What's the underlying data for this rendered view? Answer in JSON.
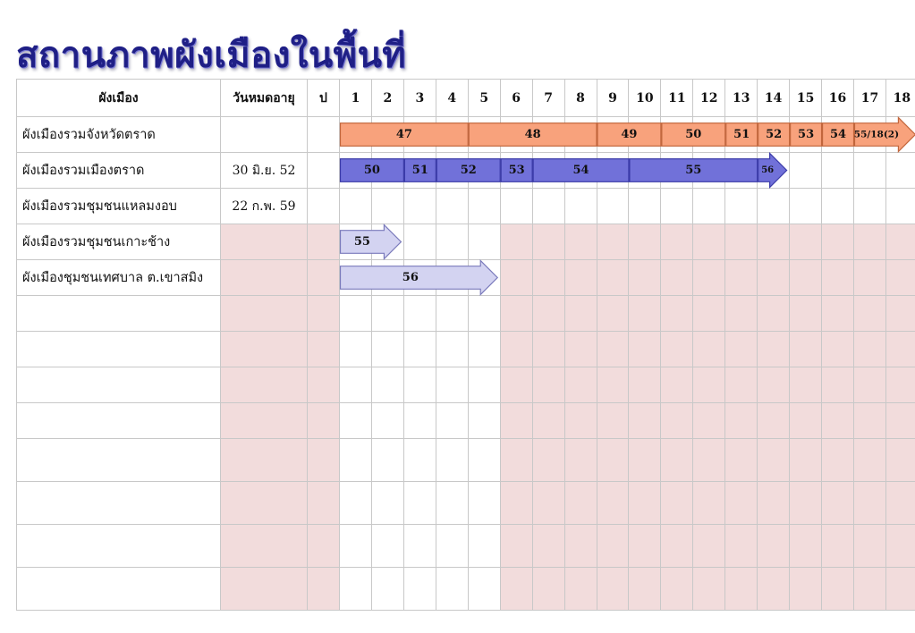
{
  "title": "สถานภาพผังเมืองในพื้นที่",
  "table": {
    "shade_color": "#F2DCDC",
    "headers": {
      "plan": "ผังเมือง",
      "expiry": "วันหมดอายุ",
      "year": "ป",
      "columns": [
        "1",
        "2",
        "3",
        "4",
        "5",
        "6",
        "7",
        "8",
        "9",
        "10",
        "11",
        "12",
        "13",
        "14",
        "15",
        "16",
        "17",
        "18"
      ]
    },
    "rows": [
      {
        "plan": "ผังเมืองรวมจังหวัดตราด",
        "expiry": "",
        "timeline": {
          "fill": "#F8A27C",
          "stroke": "#C2663C",
          "segments": [
            {
              "label": "47",
              "from_col": 1,
              "to_col": 4
            },
            {
              "label": "48",
              "from_col": 5,
              "to_col": 8
            },
            {
              "label": "49",
              "from_col": 9,
              "to_col": 10
            },
            {
              "label": "50",
              "from_col": 11,
              "to_col": 12
            },
            {
              "label": "51",
              "from_col": 13,
              "to_col": 13
            },
            {
              "label": "52",
              "from_col": 14,
              "to_col": 14
            },
            {
              "label": "53",
              "from_col": 15,
              "to_col": 15
            },
            {
              "label": "54",
              "from_col": 16,
              "to_col": 16
            },
            {
              "label": "55/18(2)",
              "from_col": 17,
              "to_col": 18
            }
          ]
        }
      },
      {
        "plan": "ผังเมืองรวมเมืองตราด",
        "expiry": "30 มิ.ย. 52",
        "timeline": {
          "fill": "#7171D9",
          "stroke": "#3A3AA8",
          "segments": [
            {
              "label": "50",
              "from_col": 1,
              "to_col": 2
            },
            {
              "label": "51",
              "from_col": 3,
              "to_col": 3
            },
            {
              "label": "52",
              "from_col": 4,
              "to_col": 5
            },
            {
              "label": "53",
              "from_col": 6,
              "to_col": 6
            },
            {
              "label": "54",
              "from_col": 7,
              "to_col": 9
            },
            {
              "label": "55",
              "from_col": 10,
              "to_col": 13
            },
            {
              "label": "56",
              "from_col": 14,
              "to_col": 14
            }
          ]
        }
      },
      {
        "plan": "ผังเมืองรวมชุมชนแหลมงอบ",
        "expiry": "22 ก.พ. 59"
      },
      {
        "plan": "ผังเมืองรวมชุมชนเกาะช้าง",
        "expiry": "",
        "timeline": {
          "fill": "#D3D3F1",
          "stroke": "#7A7ABB",
          "segments": [
            {
              "label": "55",
              "from_col": 1,
              "to_col": 2
            }
          ]
        }
      },
      {
        "plan": "ผังเมืองชุมชนเทศบาล ต.เขาสมิง",
        "expiry": "",
        "timeline": {
          "fill": "#D3D3F1",
          "stroke": "#7A7ABB",
          "segments": [
            {
              "label": "56",
              "from_col": 1,
              "to_col": 5
            }
          ]
        }
      },
      {},
      {},
      {},
      {},
      {},
      {},
      {},
      {}
    ]
  }
}
